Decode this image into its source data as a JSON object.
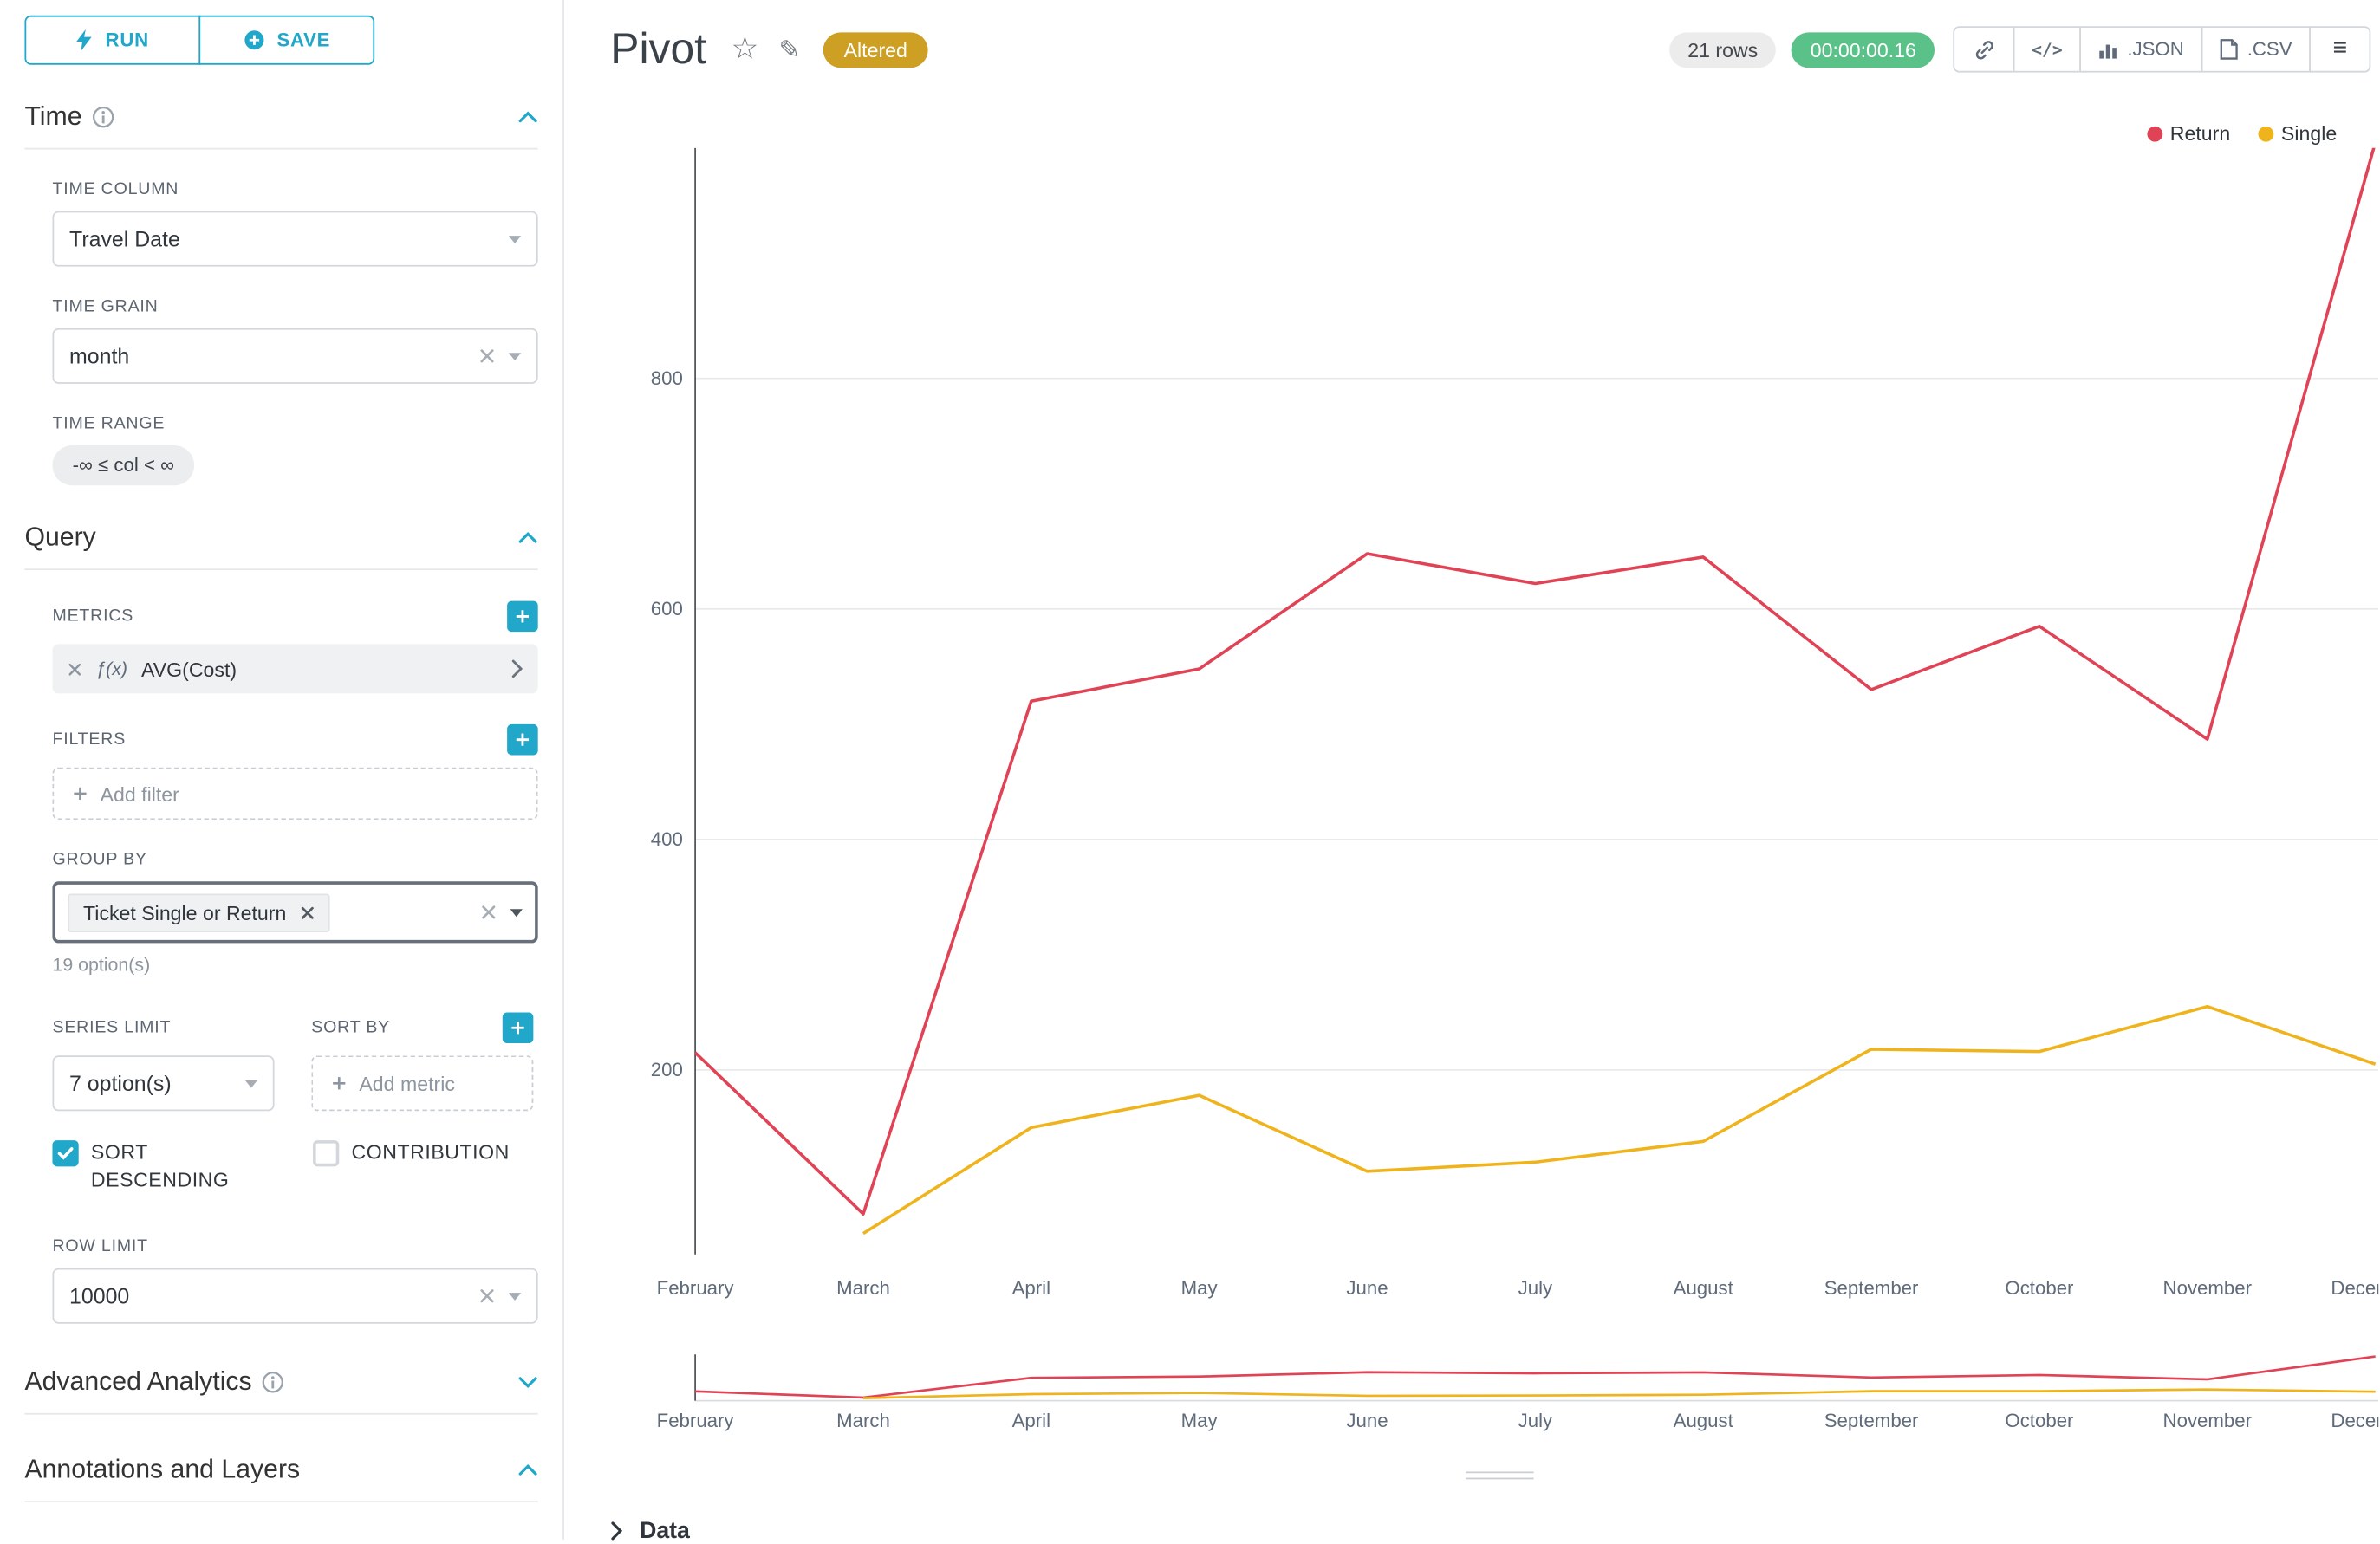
{
  "colors": {
    "accent": "#20a7c9",
    "gold": "#cda024",
    "green": "#5ac189"
  },
  "icons": {
    "star": "☆",
    "edit": "✎",
    "menu": "≡",
    "code": "</>"
  },
  "toolbar": {
    "run": "RUN",
    "save": "SAVE"
  },
  "panel": {
    "time": {
      "title": "Time",
      "column_label": "TIME COLUMN",
      "column_value": "Travel Date",
      "grain_label": "TIME GRAIN",
      "grain_value": "month",
      "range_label": "TIME RANGE",
      "range_value": "-∞ ≤ col < ∞"
    },
    "query": {
      "title": "Query",
      "metrics_label": "METRICS",
      "metric_fx": "ƒ(x)",
      "metric_value": "AVG(Cost)",
      "filters_label": "FILTERS",
      "add_filter_label": "Add filter",
      "group_by_label": "GROUP BY",
      "group_by_value": "Ticket Single or Return",
      "group_by_hint": "19 option(s)",
      "series_limit_label": "SERIES LIMIT",
      "series_limit_value": "7 option(s)",
      "sort_by_label": "SORT BY",
      "add_metric_label": "Add metric",
      "sort_descending_label": "SORT DESCENDING",
      "contribution_label": "CONTRIBUTION",
      "row_limit_label": "ROW LIMIT",
      "row_limit_value": "10000"
    },
    "advanced_title": "Advanced Analytics",
    "annotations_title": "Annotations and Layers"
  },
  "header": {
    "title": "Pivot",
    "altered_badge": "Altered",
    "row_count": "21 rows",
    "timer": "00:00:00.16",
    "json_label": ".JSON",
    "csv_label": ".CSV"
  },
  "data_panel": {
    "title": "Data"
  },
  "chart_data": {
    "type": "line",
    "title": "Pivot",
    "x": [
      "February",
      "March",
      "April",
      "May",
      "June",
      "July",
      "August",
      "September",
      "October",
      "November",
      "December"
    ],
    "series": [
      {
        "name": "Return",
        "color": "#e04355",
        "values": [
          215,
          75,
          520,
          548,
          648,
          622,
          645,
          530,
          585,
          487,
          1005
        ]
      },
      {
        "name": "Single",
        "color": "#efb31c",
        "values": [
          null,
          58,
          150,
          178,
          112,
          120,
          138,
          218,
          216,
          255,
          205
        ]
      }
    ],
    "yticks": [
      200,
      400,
      600,
      800
    ],
    "ylim": [
      40,
      1000
    ],
    "legend_position": "top-right",
    "grid": true
  }
}
